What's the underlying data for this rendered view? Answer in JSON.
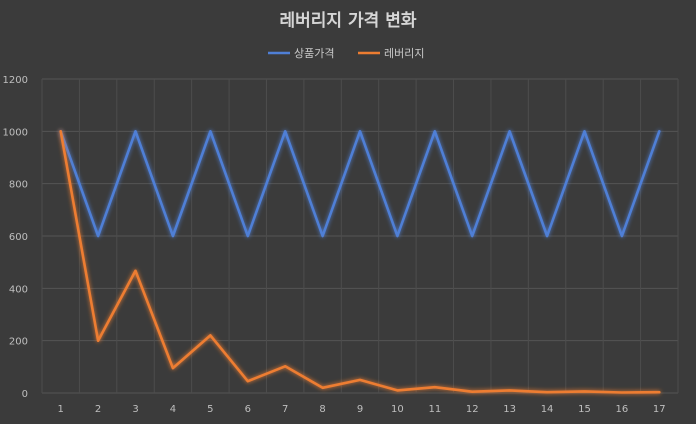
{
  "chart_data": {
    "type": "line",
    "title": "레버리지 가격 변화",
    "x": [
      1,
      2,
      3,
      4,
      5,
      6,
      7,
      8,
      9,
      10,
      11,
      12,
      13,
      14,
      15,
      16,
      17
    ],
    "ylim": [
      0,
      1200
    ],
    "yticks": [
      0,
      200,
      400,
      600,
      800,
      1000,
      1200
    ],
    "grid": true,
    "legend_position": "top",
    "series": [
      {
        "name": "상품가격",
        "color": "#4f7fd6",
        "values": [
          1000,
          600,
          1000,
          600,
          1000,
          600,
          1000,
          600,
          1000,
          600,
          1000,
          600,
          1000,
          600,
          1000,
          600,
          1000
        ]
      },
      {
        "name": "레버리지",
        "color": "#ed7d31",
        "values": [
          1000,
          200,
          467,
          95,
          220,
          45,
          102,
          20,
          50,
          10,
          22,
          5,
          10,
          3,
          6,
          2,
          3
        ]
      }
    ]
  }
}
